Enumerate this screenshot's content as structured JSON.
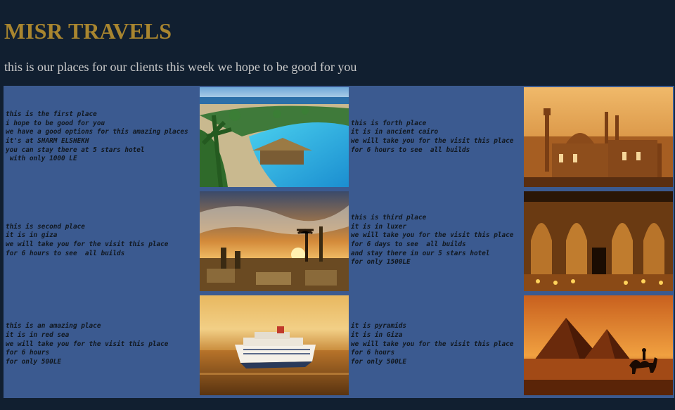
{
  "header": {
    "title": "MISR TRAVELS",
    "subtitle": "this is our places for our clients this week we hope to be good for you"
  },
  "places": [
    {
      "text": "this is the first place\ni hope to be good for you\nwe have a good options for this amazing places\nit's at SHARM ELSHEKH\nyou can stay there at 5 stars hotel\n with only 1000 LE",
      "image": "resort-pool-photo"
    },
    {
      "text": "this is forth place\nit is in ancient cairo\nwe will take you for the visit this place\nfor 6 hours to see  all builds",
      "image": "cairo-mosques-photo"
    },
    {
      "text": "this is second place\nit is in giza\nwe will take you for the visit this place\nfor 6 hours to see  all builds",
      "image": "ancient-ruins-sunset-photo"
    },
    {
      "text": "this is third place\nit is in luxer\nwe will take you for the visit this place\nfor 6 days to see  all builds\nand stay there in our 5 stars hotel\nfor only 1500LE",
      "image": "abu-simbel-temple-photo"
    },
    {
      "text": "this is an amazing place\nit is in red sea\nwe will take you for the visit this place\nfor 6 hours\nfor only 500LE",
      "image": "cruise-ship-photo"
    },
    {
      "text": "it is pyramids\nit is in Giza\nwe will take you for the visit this place\nfor 6 hours\nfor only 500LE",
      "image": "pyramids-camel-photo"
    }
  ],
  "colors": {
    "background": "#111f30",
    "title": "#a8852f",
    "panel": "#3b5a90"
  }
}
